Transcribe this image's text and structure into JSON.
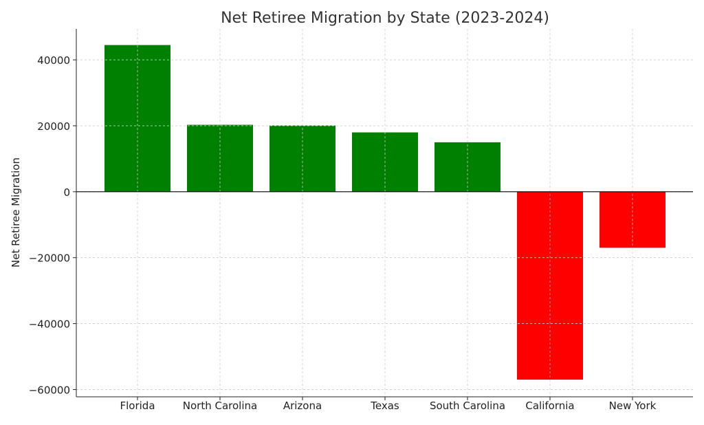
{
  "chart_data": {
    "type": "bar",
    "title": "Net Retiree Migration by State (2023-2024)",
    "xlabel": "",
    "ylabel": "Net Retiree Migration",
    "categories": [
      "Florida",
      "North Carolina",
      "Arizona",
      "Texas",
      "South Carolina",
      "California",
      "New York"
    ],
    "values": [
      44500,
      20300,
      20100,
      18000,
      15000,
      -57000,
      -17000
    ],
    "colors": [
      "#008000",
      "#008000",
      "#008000",
      "#008000",
      "#008000",
      "#ff0000",
      "#ff0000"
    ],
    "ylim": [
      -62200,
      49400
    ],
    "yticks": [
      -60000,
      -40000,
      -20000,
      0,
      20000,
      40000
    ],
    "ytick_labels": [
      "−60000",
      "−40000",
      "−20000",
      "0",
      "20000",
      "40000"
    ],
    "grid": true,
    "legend": "none"
  }
}
